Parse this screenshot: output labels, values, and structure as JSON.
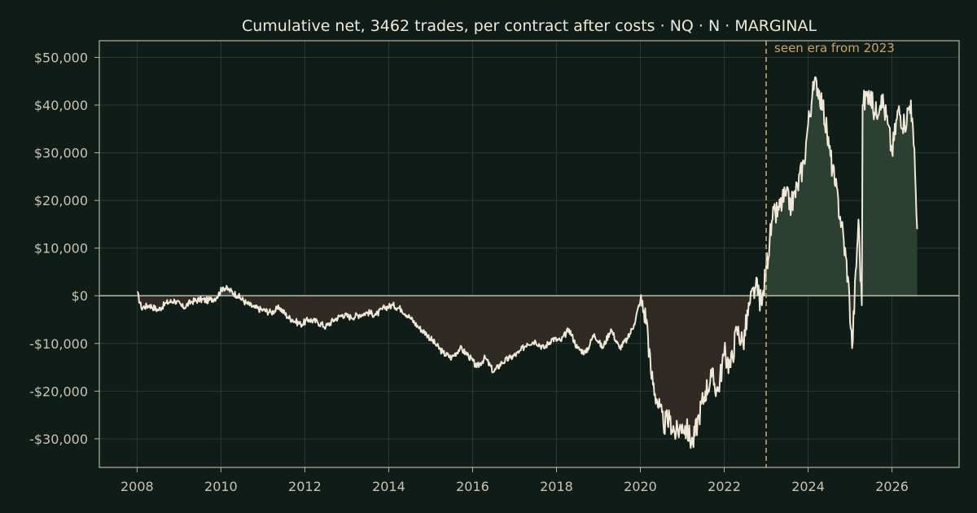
{
  "chart_data": {
    "type": "area",
    "title": "Cumulative net, 3462 trades, per contract after costs  ·  NQ · N · MARGINAL",
    "xlabel": "",
    "ylabel": "",
    "x_ticks": [
      2008,
      2010,
      2012,
      2014,
      2016,
      2018,
      2020,
      2022,
      2024,
      2026
    ],
    "y_ticks": [
      -30000,
      -20000,
      -10000,
      0,
      10000,
      20000,
      30000,
      40000,
      50000
    ],
    "y_tick_labels": [
      "-$30,000",
      "-$20,000",
      "-$10,000",
      "$0",
      "$10,000",
      "$20,000",
      "$30,000",
      "$40,000",
      "$50,000"
    ],
    "xlim": [
      2007.1,
      2027.6
    ],
    "ylim": [
      -36000,
      53500
    ],
    "grid": true,
    "annotation": {
      "x": 2023.0,
      "text": "seen era from 2023"
    },
    "colors": {
      "background": "#0f1c17",
      "line": "#efe8d8",
      "fill_positive": "#2b3f33",
      "fill_negative": "#2f2a24",
      "marker": "#c8a46a",
      "grid": "#2a3a33",
      "axis": "#b7b19f",
      "zero_line": "#cfc8b4"
    },
    "series": [
      {
        "x": [
          2008.0,
          2008.1,
          2008.3,
          2008.5,
          2008.7,
          2008.9,
          2009.1,
          2009.3,
          2009.5,
          2009.7,
          2009.9,
          2010.05,
          2010.2,
          2010.4,
          2010.6,
          2010.8,
          2011.0,
          2011.2,
          2011.4,
          2011.6,
          2011.7,
          2011.9,
          2012.1,
          2012.3,
          2012.5,
          2012.7,
          2012.9,
          2013.1,
          2013.3,
          2013.5,
          2013.7,
          2013.9,
          2014.1,
          2014.3,
          2014.5,
          2014.7,
          2014.9,
          2015.1,
          2015.3,
          2015.5,
          2015.7,
          2015.9,
          2016.1,
          2016.3,
          2016.5,
          2016.7,
          2016.9,
          2017.1,
          2017.3,
          2017.5,
          2017.7,
          2017.9,
          2018.1,
          2018.3,
          2018.5,
          2018.7,
          2018.9,
          2019.1,
          2019.3,
          2019.5,
          2019.7,
          2019.85,
          2020.0,
          2020.15,
          2020.25,
          2020.4,
          2020.55,
          2020.7,
          2020.85,
          2021.0,
          2021.1,
          2021.25,
          2021.4,
          2021.55,
          2021.7,
          2021.85,
          2022.0,
          2022.15,
          2022.3,
          2022.45,
          2022.6,
          2022.75,
          2022.9,
          2023.0,
          2023.15,
          2023.3,
          2023.45,
          2023.6,
          2023.75,
          2023.9,
          2024.0,
          2024.1,
          2024.2,
          2024.35,
          2024.5,
          2024.65,
          2024.8,
          2024.95,
          2025.05,
          2025.2,
          2025.28,
          2025.3,
          2025.45,
          2025.6,
          2025.75,
          2025.9,
          2026.0,
          2026.15,
          2026.3,
          2026.45,
          2026.55,
          2026.6
        ],
        "y": [
          800,
          -2500,
          -2000,
          -3000,
          -1500,
          -1000,
          -2500,
          -1200,
          -800,
          -1000,
          -300,
          1800,
          1200,
          0,
          -1500,
          -2500,
          -3000,
          -3500,
          -2500,
          -4500,
          -5000,
          -6000,
          -5000,
          -5500,
          -6500,
          -5000,
          -4000,
          -4500,
          -4000,
          -3500,
          -4000,
          -2500,
          -2000,
          -2800,
          -4500,
          -6500,
          -8000,
          -10000,
          -12000,
          -13000,
          -11000,
          -12500,
          -15000,
          -13000,
          -16000,
          -14000,
          -13000,
          -12000,
          -10000,
          -9500,
          -11000,
          -9000,
          -9500,
          -7000,
          -11000,
          -12000,
          -8000,
          -11000,
          -7000,
          -11000,
          -9000,
          -6000,
          -1000,
          -5000,
          -16000,
          -22000,
          -27000,
          -26000,
          -29000,
          -27000,
          -28000,
          -31000,
          -25000,
          -20000,
          -17000,
          -20000,
          -12000,
          -15000,
          -7000,
          -10000,
          -2000,
          2000,
          -2000,
          6000,
          16000,
          18000,
          21000,
          19000,
          23000,
          28000,
          36000,
          42000,
          45000,
          40000,
          31000,
          23000,
          15000,
          4000,
          -11000,
          16000,
          -2000,
          40000,
          43000,
          38000,
          42000,
          36000,
          30000,
          39000,
          36000,
          41000,
          26000,
          14000
        ]
      }
    ]
  }
}
